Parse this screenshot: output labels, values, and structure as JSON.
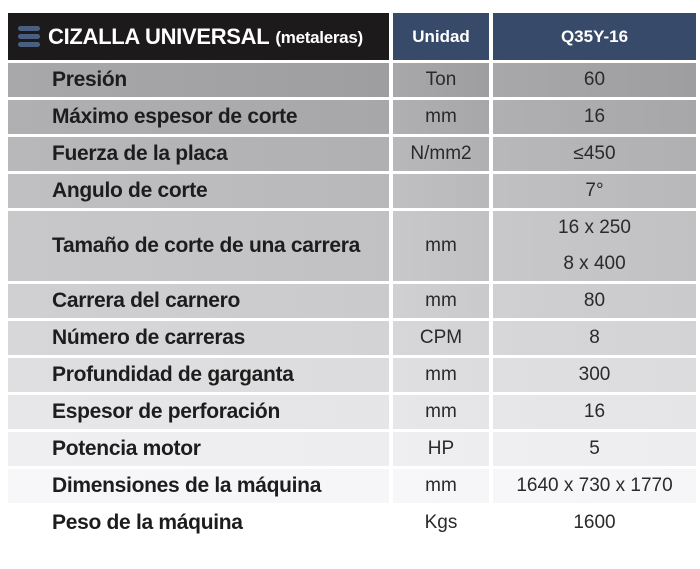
{
  "header": {
    "title": "CIZALLA UNIVERSAL",
    "subtitle": "(metaleras)",
    "unit_label": "Unidad",
    "model": "Q35Y-16",
    "icon": "menu-icon"
  },
  "colors": {
    "header_dark": "#1c1a1a",
    "header_blue": "#374a6a"
  },
  "rows": [
    {
      "label": "Presión",
      "unit": "Ton",
      "value": "60"
    },
    {
      "label": "Máximo espesor de corte",
      "unit": "mm",
      "value": "16"
    },
    {
      "label": "Fuerza de la placa",
      "unit": "N/mm2",
      "value": "≤450"
    },
    {
      "label": "Angulo de corte",
      "unit": "",
      "value": "7°"
    },
    {
      "label": "Tamaño de corte de una carrera",
      "unit": "mm",
      "value": "16 x 250",
      "value2": "8 x 400"
    },
    {
      "label": "Carrera del carnero",
      "unit": "mm",
      "value": "80"
    },
    {
      "label": "Número de carreras",
      "unit": "CPM",
      "value": "8"
    },
    {
      "label": "Profundidad de garganta",
      "unit": "mm",
      "value": "300"
    },
    {
      "label": "Espesor de perforación",
      "unit": "mm",
      "value": "16"
    },
    {
      "label": "Potencia motor",
      "unit": "HP",
      "value": "5"
    },
    {
      "label": "Dimensiones de la máquina",
      "unit": "mm",
      "value": "1640 x 730 x 1770"
    },
    {
      "label": "Peso de la máquina",
      "unit": "Kgs",
      "value": "1600"
    }
  ]
}
